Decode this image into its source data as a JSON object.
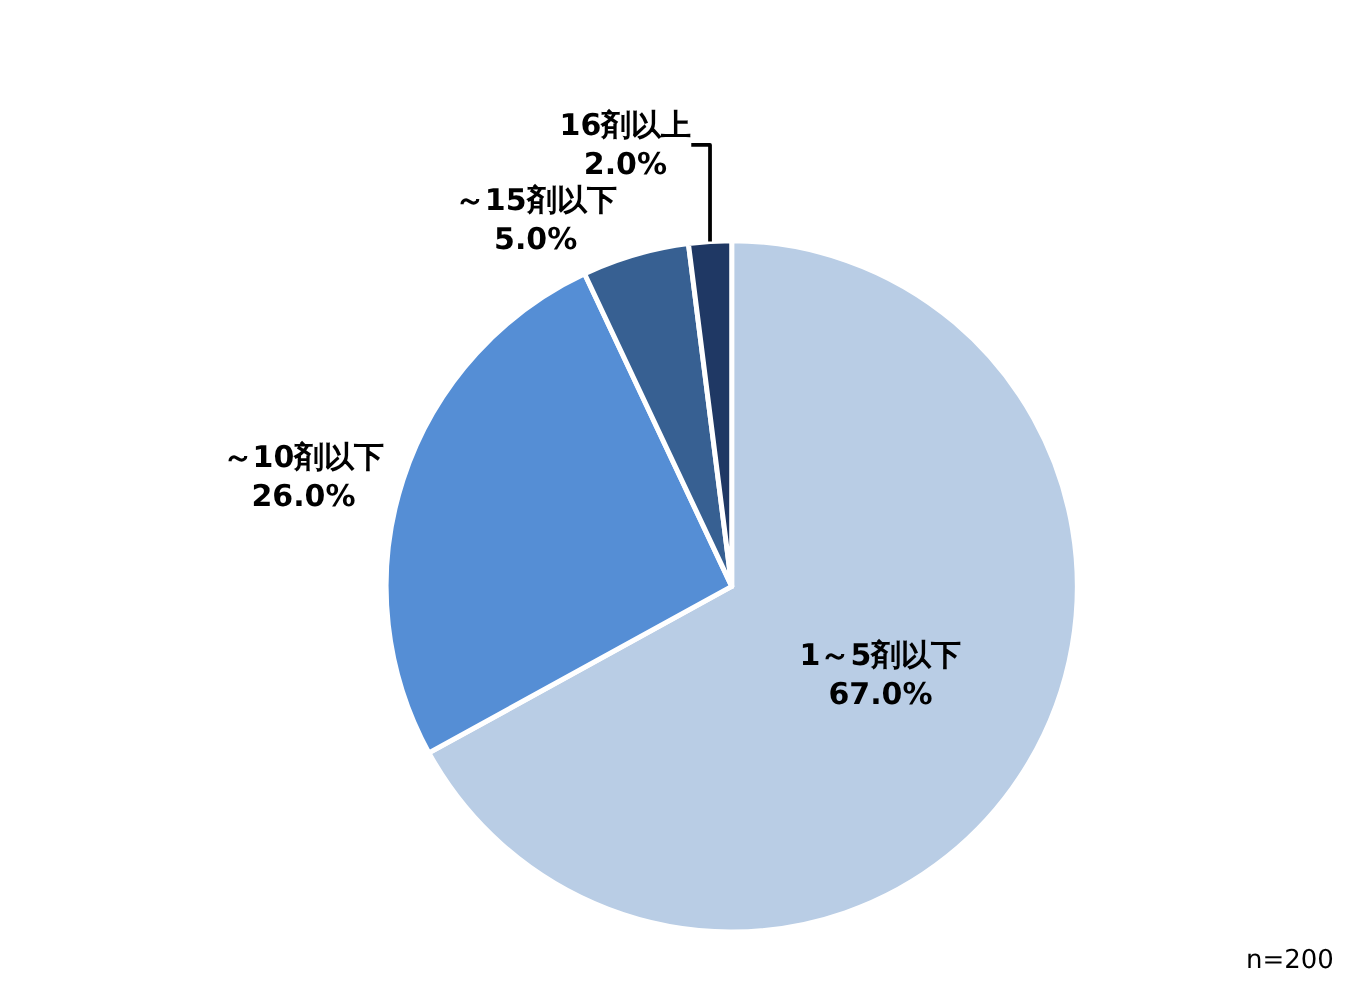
{
  "chart_data": {
    "type": "pie",
    "categories": [
      "1～5剤以下",
      "～10剤以下",
      "～15剤以下",
      "16剤以上"
    ],
    "values": [
      67.0,
      26.0,
      5.0,
      2.0
    ],
    "value_labels": [
      "67.0%",
      "26.0%",
      "5.0%",
      "2.0%"
    ],
    "colors": [
      "#b9cde5",
      "#558ed5",
      "#376092",
      "#1f3864"
    ],
    "annotations": [
      "n=200"
    ],
    "legend": false
  }
}
